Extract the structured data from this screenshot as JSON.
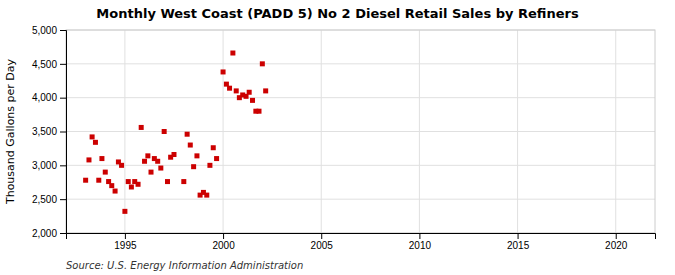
{
  "chart_data": {
    "type": "scatter",
    "title": "Monthly West Coast (PADD 5) No 2 Diesel Retail Sales by Refiners",
    "ylabel": "Thousand Gallons per Day",
    "source": "Source: U.S. Energy Information Administration",
    "color": "#cc0000",
    "marker": "square",
    "grid": true,
    "xlim": [
      1992,
      2022
    ],
    "ylim": [
      2000,
      5000
    ],
    "xticks": [
      1995,
      2000,
      2005,
      2010,
      2015,
      2020
    ],
    "yticks": [
      {
        "value": 2000,
        "label": "2,000"
      },
      {
        "value": 2500,
        "label": "2,500"
      },
      {
        "value": 3000,
        "label": "3,000"
      },
      {
        "value": 3500,
        "label": "3,500"
      },
      {
        "value": 4000,
        "label": "4,000"
      },
      {
        "value": 4500,
        "label": "4,500"
      },
      {
        "value": 5000,
        "label": "5,000"
      }
    ],
    "x": [
      1993.0,
      1993.17,
      1993.33,
      1993.5,
      1993.67,
      1993.83,
      1994.0,
      1994.17,
      1994.33,
      1994.5,
      1994.67,
      1994.83,
      1995.0,
      1995.17,
      1995.33,
      1995.5,
      1995.67,
      1995.83,
      1996.0,
      1996.17,
      1996.33,
      1996.5,
      1996.67,
      1996.83,
      1997.0,
      1997.17,
      1997.33,
      1997.5,
      1998.0,
      1998.17,
      1998.33,
      1998.5,
      1998.67,
      1998.83,
      1999.0,
      1999.17,
      1999.33,
      1999.5,
      1999.67,
      2000.0,
      2000.17,
      2000.33,
      2000.5,
      2000.67,
      2000.83,
      2001.0,
      2001.17,
      2001.33,
      2001.5,
      2001.67,
      2001.83,
      2002.0,
      2002.17
    ],
    "y": [
      2780,
      3080,
      3420,
      3340,
      2780,
      3100,
      2900,
      2760,
      2700,
      2620,
      3050,
      3000,
      2320,
      2760,
      2680,
      2760,
      2720,
      3560,
      3060,
      3140,
      2900,
      3100,
      3060,
      2960,
      3500,
      2760,
      3120,
      3160,
      2760,
      3460,
      3300,
      2980,
      3140,
      2560,
      2600,
      2560,
      3000,
      3260,
      3100,
      4380,
      4200,
      4140,
      4660,
      4100,
      4000,
      4040,
      4020,
      4080,
      3960,
      3800,
      3800,
      4500,
      4100
    ]
  }
}
